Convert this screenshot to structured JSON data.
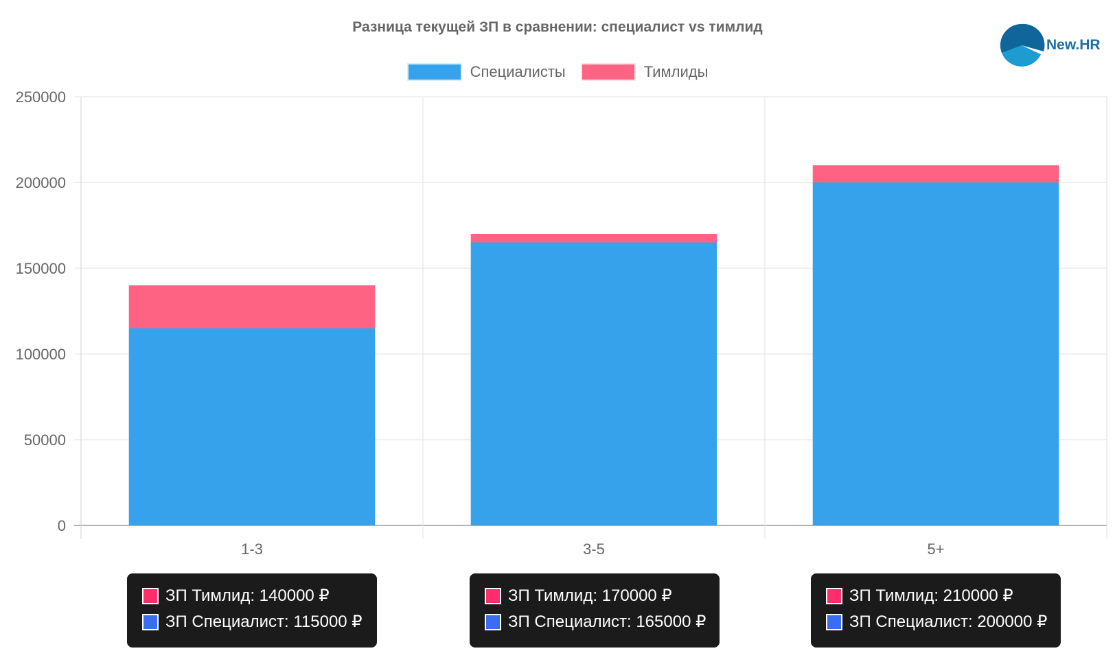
{
  "chart_data": {
    "type": "bar",
    "stacked": true,
    "title": "Разница текущей ЗП в сравнении: специалист vs тимлид",
    "categories": [
      "1-3",
      "3-5",
      "5+"
    ],
    "series": [
      {
        "name": "Специалисты",
        "color": "#36a2eb",
        "values": [
          115000,
          165000,
          200000
        ]
      },
      {
        "name": "Тимлиды",
        "color": "#ff6384",
        "values": [
          25000,
          5000,
          10000
        ]
      }
    ],
    "ylim": [
      0,
      250000
    ],
    "yticks": [
      "0",
      "50000",
      "100000",
      "150000",
      "200000",
      "250000"
    ],
    "grid": true,
    "legend_position": "top"
  },
  "logo": {
    "text": "New.HR"
  },
  "tooltips": [
    {
      "lead_color": "#ff2d6b",
      "spec_color": "#3b6df0",
      "lead_text": "ЗП Тимлид: 140000 ₽",
      "spec_text": "ЗП Специалист: 115000 ₽"
    },
    {
      "lead_color": "#ff2d6b",
      "spec_color": "#3b6df0",
      "lead_text": "ЗП Тимлид: 170000 ₽",
      "spec_text": "ЗП Специалист: 165000 ₽"
    },
    {
      "lead_color": "#ff2d6b",
      "spec_color": "#3b6df0",
      "lead_text": "ЗП Тимлид: 210000 ₽",
      "spec_text": "ЗП Специалист: 200000 ₽"
    }
  ]
}
